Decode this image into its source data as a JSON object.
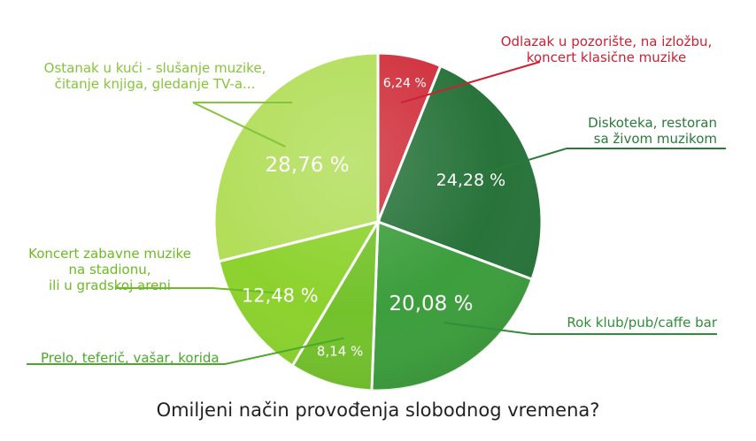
{
  "chart_data": {
    "type": "pie",
    "title": "Omiljeni način provođenja slobodnog vremena?",
    "slices": [
      {
        "label_lines": [
          "Odlazak u pozorište, na izložbu,",
          "koncert klasične muzike"
        ],
        "value": 6.24,
        "value_label": "6,24 %",
        "color": "#d0303c"
      },
      {
        "label_lines": [
          "Diskoteka, restoran",
          "sa živom muzikom"
        ],
        "value": 24.28,
        "value_label": "24,28 %",
        "color": "#27733a"
      },
      {
        "label_lines": [
          "Rok klub/pub/caffe bar"
        ],
        "value": 20.08,
        "value_label": "20,08 %",
        "color": "#3c9e3c"
      },
      {
        "label_lines": [
          "Prelo, teferič, vašar, korida"
        ],
        "value": 8.14,
        "value_label": "8,14 %",
        "color": "#73c22b"
      },
      {
        "label_lines": [
          "Koncert zabavne muzike",
          "na stadionu,",
          "ili u gradskoj areni"
        ],
        "value": 12.48,
        "value_label": "12,48 %",
        "color": "#8cd22d"
      },
      {
        "label_lines": [
          "Ostanak u kući - slušanje muzike,",
          "čitanje knjiga, gledanje TV-a..."
        ],
        "value": 28.76,
        "value_label": "28,76 %",
        "color": "#b2de5a"
      }
    ],
    "label_colors": [
      "#cc2233",
      "#2a7a3a",
      "#2f8f3a",
      "#4aa82b",
      "#6cbb22",
      "#86c43a"
    ]
  }
}
